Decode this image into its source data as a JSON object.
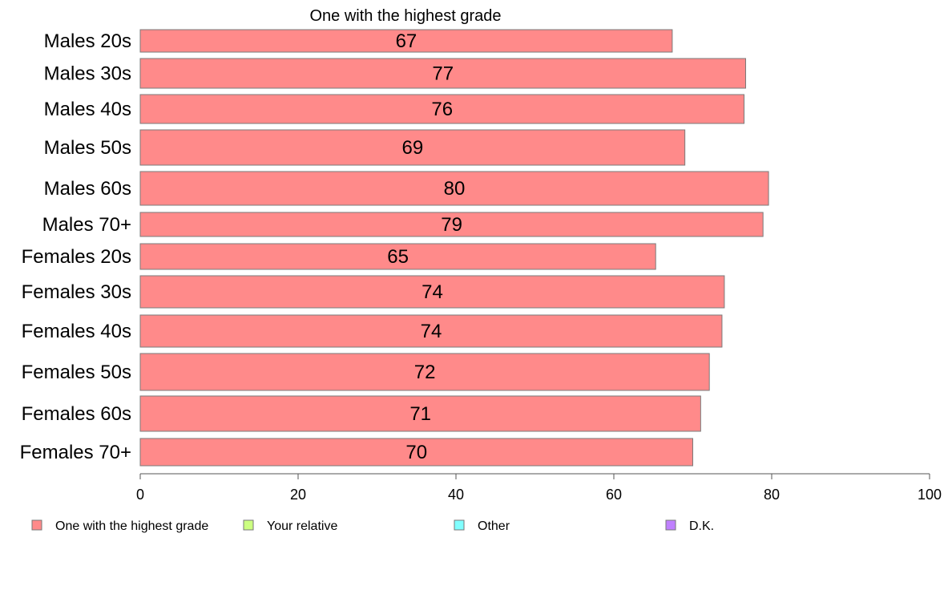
{
  "chart_data": {
    "type": "bar",
    "orientation": "horizontal",
    "title": "One with the highest grade",
    "categories": [
      "Males 20s",
      "Males 30s",
      "Males 40s",
      "Males 50s",
      "Males 60s",
      "Males 70+",
      "Females 20s",
      "Females 30s",
      "Females 40s",
      "Females 50s",
      "Females 60s",
      "Females 70+"
    ],
    "series": [
      {
        "name": "One with the highest grade",
        "color": "#ff8a8a",
        "values": [
          67.4,
          76.7,
          76.5,
          69.0,
          79.6,
          78.9,
          65.3,
          74.0,
          73.7,
          72.1,
          71.0,
          70.0
        ],
        "labels": [
          "67",
          "77",
          "76",
          "69",
          "80",
          "79",
          "65",
          "74",
          "74",
          "72",
          "71",
          "70"
        ]
      }
    ],
    "legend": [
      {
        "name": "One with the highest grade",
        "color": "#ff8a8a"
      },
      {
        "name": "Your relative",
        "color": "#ccff80"
      },
      {
        "name": "Other",
        "color": "#80ffff"
      },
      {
        "name": "D.K.",
        "color": "#c080ff"
      }
    ],
    "legend_position": "bottom",
    "xlim": [
      0,
      100
    ],
    "xticks": [
      0,
      20,
      40,
      60,
      80,
      100
    ],
    "grid": false
  }
}
